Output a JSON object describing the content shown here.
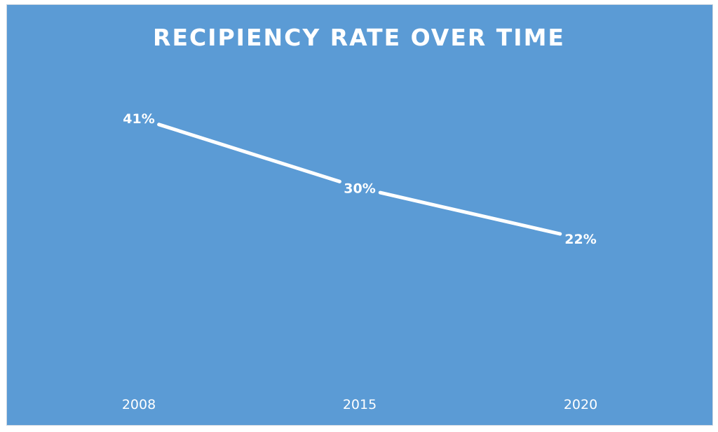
{
  "chart_data": {
    "type": "line",
    "title": "RECIPIENCY RATE OVER TIME",
    "categories": [
      "2008",
      "2015",
      "2020"
    ],
    "series": [
      {
        "values": [
          41,
          30,
          22
        ],
        "data_labels": [
          "41%",
          "30%",
          "22%"
        ]
      }
    ],
    "ylim": [
      0,
      55
    ],
    "grid": false,
    "legend": "none",
    "colors": {
      "background": "#5b9bd5",
      "line": "#ffffff",
      "drop_lines": "#ffffff",
      "text": "#ffffff"
    }
  }
}
